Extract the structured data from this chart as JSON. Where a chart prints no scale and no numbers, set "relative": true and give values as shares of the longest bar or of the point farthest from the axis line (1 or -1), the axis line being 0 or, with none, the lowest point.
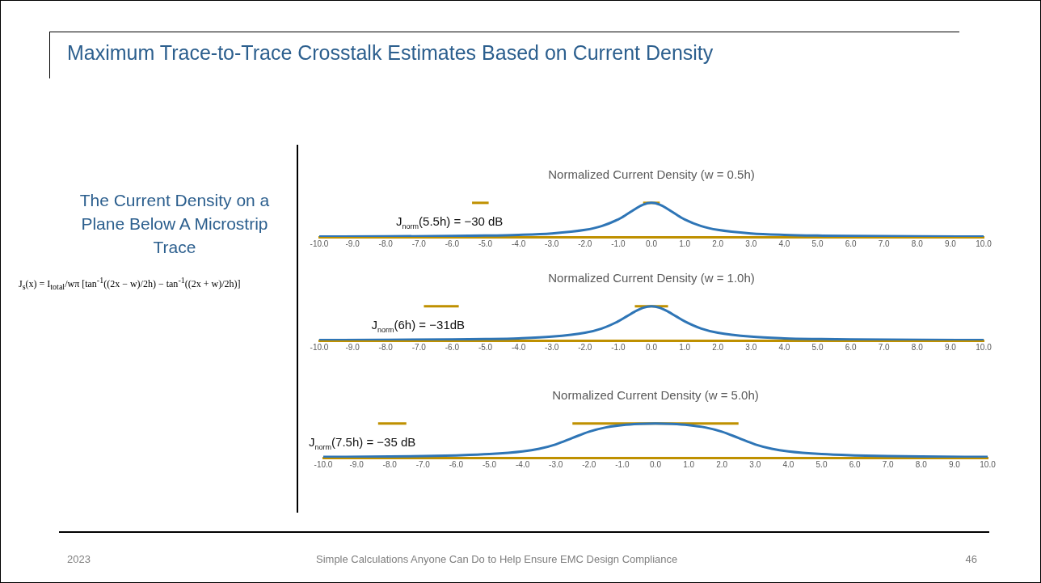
{
  "chart_data": [
    {
      "type": "other",
      "title": "Maximum Trace-to-Trace Crosstalk Estimates Based on Current Density",
      "annotations": [
        "2023",
        "Simple Calculations Anyone Can Do to Help Ensure EMC Design Compliance",
        "46"
      ]
    },
    {
      "type": "other",
      "title": "The Current Density on a Plane Below A Microstrip Trace",
      "annotations": [
        "J$_{s}$(x) = I$_{total}$/wπ [tan$^{-1}$((2x − w)/2h) − tan$^{-1}$((2x + w)/2h)]"
      ]
    },
    {
      "type": "line",
      "title": "Normalized Current Density (w = 0.5h)",
      "relative": true,
      "xlim": [
        -10,
        10
      ],
      "xticks": [
        {
          "value": -10,
          "label": "-10.0"
        },
        {
          "value": -9,
          "label": "-9.0"
        },
        {
          "value": -8,
          "label": "-8.0"
        },
        {
          "value": -7,
          "label": "-7.0"
        },
        {
          "value": -6,
          "label": "-6.0"
        },
        {
          "value": -5,
          "label": "-5.0"
        },
        {
          "value": -4,
          "label": "-4.0"
        },
        {
          "value": -3,
          "label": "-3.0"
        },
        {
          "value": -2,
          "label": "-2.0"
        },
        {
          "value": -1,
          "label": "-1.0"
        },
        {
          "value": 0,
          "label": "0.0"
        },
        {
          "value": 1,
          "label": "1.0"
        },
        {
          "value": 2,
          "label": "2.0"
        },
        {
          "value": 3,
          "label": "3.0"
        },
        {
          "value": 4,
          "label": "4.0"
        },
        {
          "value": 5,
          "label": "5.0"
        },
        {
          "value": 6,
          "label": "6.0"
        },
        {
          "value": 7,
          "label": "7.0"
        },
        {
          "value": 8,
          "label": "8.0"
        },
        {
          "value": 9,
          "label": "9.0"
        },
        {
          "value": 10,
          "label": "10.0"
        }
      ],
      "series": [
        {
          "color": "#2e75b6",
          "x": [
            -10,
            -8,
            -6,
            -5,
            -4,
            -3,
            -2,
            -1.5,
            -1,
            -0.75,
            -0.5,
            -0.25,
            0,
            0.25,
            0.5,
            0.75,
            1,
            1.5,
            2,
            3,
            4,
            5,
            6,
            8,
            10
          ],
          "values": [
            0.01,
            0.016,
            0.028,
            0.039,
            0.06,
            0.103,
            0.206,
            0.318,
            0.515,
            0.657,
            0.813,
            0.946,
            1,
            0.946,
            0.813,
            0.657,
            0.515,
            0.318,
            0.206,
            0.103,
            0.06,
            0.039,
            0.028,
            0.016,
            0.01
          ]
        },
        {
          "color": "#bf9000",
          "x": [
            -0.25,
            0.25
          ],
          "values": [
            1,
            1
          ]
        },
        {
          "color": "#bf9000",
          "x": [
            -5.4,
            -4.9
          ],
          "values": [
            1,
            1
          ]
        }
      ],
      "annotations": [
        {
          "text": "J$_{norm}$(5.5h) = −30 dB",
          "x": -5.15,
          "y": 1
        }
      ]
    },
    {
      "type": "line",
      "title": "Normalized Current Density (w = 1.0h)",
      "relative": true,
      "xlim": [
        -10,
        10
      ],
      "xticks": [
        {
          "value": -10,
          "label": "-10.0"
        },
        {
          "value": -9,
          "label": "-9.0"
        },
        {
          "value": -8,
          "label": "-8.0"
        },
        {
          "value": -7,
          "label": "-7.0"
        },
        {
          "value": -6,
          "label": "-6.0"
        },
        {
          "value": -5,
          "label": "-5.0"
        },
        {
          "value": -4,
          "label": "-4.0"
        },
        {
          "value": -3,
          "label": "-3.0"
        },
        {
          "value": -2,
          "label": "-2.0"
        },
        {
          "value": -1,
          "label": "-1.0"
        },
        {
          "value": 0,
          "label": "0.0"
        },
        {
          "value": 1,
          "label": "1.0"
        },
        {
          "value": 2,
          "label": "2.0"
        },
        {
          "value": 3,
          "label": "3.0"
        },
        {
          "value": 4,
          "label": "4.0"
        },
        {
          "value": 5,
          "label": "5.0"
        },
        {
          "value": 6,
          "label": "6.0"
        },
        {
          "value": 7,
          "label": "7.0"
        },
        {
          "value": 8,
          "label": "8.0"
        },
        {
          "value": 9,
          "label": "9.0"
        },
        {
          "value": 10,
          "label": "10.0"
        }
      ],
      "series": [
        {
          "color": "#2e75b6",
          "x": [
            -10,
            -8,
            -6,
            -5,
            -4,
            -3,
            -2,
            -1.5,
            -1,
            -0.75,
            -0.5,
            -0.25,
            0,
            0.25,
            0.5,
            0.75,
            1,
            1.5,
            2,
            3,
            4,
            5,
            6,
            8,
            10
          ],
          "values": [
            0.011,
            0.017,
            0.029,
            0.041,
            0.062,
            0.11,
            0.224,
            0.347,
            0.56,
            0.702,
            0.847,
            0.958,
            1,
            0.958,
            0.847,
            0.702,
            0.56,
            0.347,
            0.224,
            0.11,
            0.062,
            0.041,
            0.029,
            0.017,
            0.011
          ]
        },
        {
          "color": "#bf9000",
          "x": [
            -0.5,
            0.5
          ],
          "values": [
            1,
            1
          ]
        },
        {
          "color": "#bf9000",
          "x": [
            -6.85,
            -5.8
          ],
          "values": [
            1,
            1
          ]
        }
      ],
      "annotations": [
        {
          "text": "J$_{norm}$(6h) = −31dB",
          "x": -6.3,
          "y": 1
        }
      ]
    },
    {
      "type": "line",
      "title": "Normalized Current Density (w = 5.0h)",
      "relative": true,
      "xlim": [
        -10,
        10
      ],
      "xticks": [
        {
          "value": -10,
          "label": "-10.0"
        },
        {
          "value": -9,
          "label": "-9.0"
        },
        {
          "value": -8,
          "label": "-8.0"
        },
        {
          "value": -7,
          "label": "-7.0"
        },
        {
          "value": -6,
          "label": "-6.0"
        },
        {
          "value": -5,
          "label": "-5.0"
        },
        {
          "value": -4,
          "label": "-4.0"
        },
        {
          "value": -3,
          "label": "-3.0"
        },
        {
          "value": -2,
          "label": "-2.0"
        },
        {
          "value": -1,
          "label": "-1.0"
        },
        {
          "value": 0,
          "label": "0.0"
        },
        {
          "value": 1,
          "label": "1.0"
        },
        {
          "value": 2,
          "label": "2.0"
        },
        {
          "value": 3,
          "label": "3.0"
        },
        {
          "value": 4,
          "label": "4.0"
        },
        {
          "value": 5,
          "label": "5.0"
        },
        {
          "value": 6,
          "label": "6.0"
        },
        {
          "value": 7,
          "label": "7.0"
        },
        {
          "value": 8,
          "label": "8.0"
        },
        {
          "value": 9,
          "label": "9.0"
        },
        {
          "value": 10,
          "label": "10.0"
        }
      ],
      "series": [
        {
          "color": "#2e75b6",
          "x": [
            -10,
            -8,
            -7,
            -6,
            -5,
            -4,
            -3.5,
            -3,
            -2.5,
            -2,
            -1.5,
            -1,
            -0.5,
            0,
            0.5,
            1,
            1.5,
            2,
            2.5,
            3,
            3.5,
            4,
            5,
            6,
            7,
            8,
            10
          ],
          "values": [
            0.022,
            0.036,
            0.048,
            0.068,
            0.104,
            0.183,
            0.261,
            0.39,
            0.577,
            0.763,
            0.887,
            0.956,
            0.99,
            1,
            0.99,
            0.956,
            0.887,
            0.763,
            0.577,
            0.39,
            0.261,
            0.183,
            0.104,
            0.068,
            0.048,
            0.036,
            0.022
          ]
        },
        {
          "color": "#bf9000",
          "x": [
            -2.5,
            2.5
          ],
          "values": [
            1,
            1
          ]
        },
        {
          "color": "#bf9000",
          "x": [
            -8.35,
            -7.5
          ],
          "values": [
            1,
            1
          ]
        }
      ],
      "annotations": [
        {
          "text": "J$_{norm}$(7.5h) = −35 dB",
          "x": -7.9,
          "y": 1
        }
      ]
    }
  ]
}
